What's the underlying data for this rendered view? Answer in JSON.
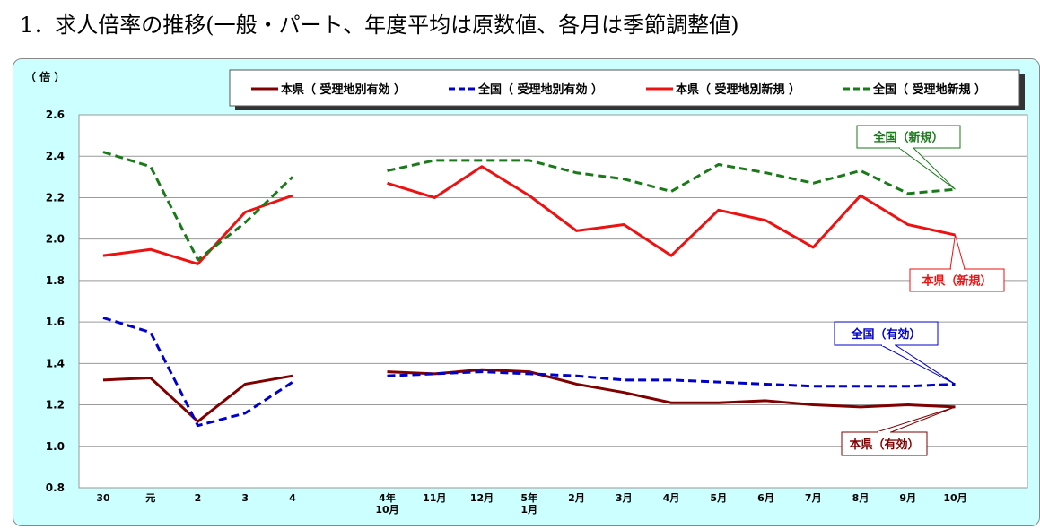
{
  "page": {
    "title": "1．求人倍率の推移(一般・パート、年度平均は原数値、各月は季節調整値)"
  },
  "chart_data": {
    "type": "line",
    "ylabel": "（ 倍 ）",
    "ylim": [
      0.8,
      2.6
    ],
    "yticks": [
      "0.8",
      "1.0",
      "1.2",
      "1.4",
      "1.6",
      "1.8",
      "2.0",
      "2.2",
      "2.4",
      "2.6"
    ],
    "categories": [
      [
        "30"
      ],
      [
        "元"
      ],
      [
        "2"
      ],
      [
        "3"
      ],
      [
        "4"
      ],
      [
        ""
      ],
      [
        "4年",
        "10月"
      ],
      [
        "11月"
      ],
      [
        "12月"
      ],
      [
        "5年",
        "1月"
      ],
      [
        "2月"
      ],
      [
        "3月"
      ],
      [
        "4月"
      ],
      [
        "5月"
      ],
      [
        "6月"
      ],
      [
        "7月"
      ],
      [
        "8月"
      ],
      [
        "9月"
      ],
      [
        "10月"
      ]
    ],
    "grid": true,
    "legend_position": "top",
    "series": [
      {
        "name": "本県（ 受理地別有効 ）",
        "color": "#800000",
        "dash": "solid",
        "values": [
          1.32,
          1.33,
          1.12,
          1.3,
          1.34,
          null,
          1.36,
          1.35,
          1.37,
          1.36,
          1.3,
          1.26,
          1.21,
          1.21,
          1.22,
          1.2,
          1.19,
          1.2,
          1.19
        ]
      },
      {
        "name": "全国（ 受理地別有効 ）",
        "color": "#0000cc",
        "dash": "dashed",
        "values": [
          1.62,
          1.55,
          1.1,
          1.16,
          1.31,
          null,
          1.34,
          1.35,
          1.36,
          1.35,
          1.34,
          1.32,
          1.32,
          1.31,
          1.3,
          1.29,
          1.29,
          1.29,
          1.3
        ]
      },
      {
        "name": "本県（ 受理地別新規 ）",
        "color": "#ee1111",
        "dash": "solid",
        "values": [
          1.92,
          1.95,
          1.88,
          2.13,
          2.21,
          null,
          2.27,
          2.2,
          2.35,
          2.21,
          2.04,
          2.07,
          1.92,
          2.14,
          2.09,
          1.96,
          2.21,
          2.07,
          2.02
        ]
      },
      {
        "name": "全国（ 受理地新規 ）",
        "color": "#1a7a1a",
        "dash": "dashed",
        "values": [
          2.42,
          2.35,
          1.9,
          2.08,
          2.3,
          null,
          2.33,
          2.38,
          2.38,
          2.38,
          2.32,
          2.29,
          2.23,
          2.36,
          2.32,
          2.27,
          2.33,
          2.22,
          2.24
        ]
      }
    ],
    "annotations": [
      {
        "text": "全国（新規）",
        "color": "#1a7a1a",
        "series": 3
      },
      {
        "text": "本県（新規）",
        "color": "#ee1111",
        "series": 2
      },
      {
        "text": "全国（有効）",
        "color": "#0000cc",
        "series": 1
      },
      {
        "text": "本県（有効）",
        "color": "#800000",
        "series": 0
      }
    ]
  }
}
